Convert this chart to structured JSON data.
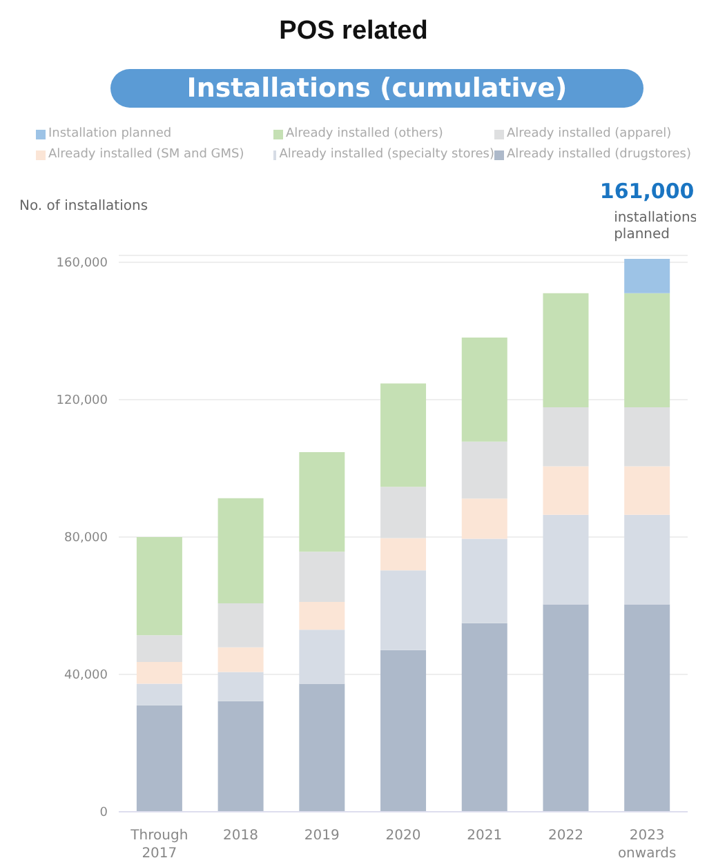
{
  "chart_data": {
    "type": "bar",
    "title": "POS related",
    "subtitle": "Installations (cumulative)",
    "ylabel": "No. of installations",
    "categories": [
      "Through 2017",
      "2018",
      "2019",
      "2020",
      "2021",
      "2022",
      "2023 onwards"
    ],
    "series": [
      {
        "name": "Already installed (drugstores)",
        "color": "#adb9ca",
        "values": [
          31000,
          32200,
          37300,
          47100,
          54900,
          60400,
          60400
        ]
      },
      {
        "name": "Already installed (specialty stores)",
        "color": "#d6dce5",
        "values": [
          6300,
          8500,
          15700,
          23200,
          24600,
          26100,
          26100
        ]
      },
      {
        "name": "Already installed (SM and GMS)",
        "color": "#fbe5d6",
        "values": [
          6300,
          7200,
          8100,
          9400,
          11700,
          14100,
          14100
        ]
      },
      {
        "name": "Already installed (apparel)",
        "color": "#dedfe0",
        "values": [
          7800,
          12800,
          14600,
          14900,
          16600,
          17200,
          17200
        ]
      },
      {
        "name": "Already installed (others)",
        "color": "#c5e0b4",
        "values": [
          28600,
          30600,
          29000,
          30100,
          30300,
          33200,
          33200
        ]
      },
      {
        "name": "Installation planned",
        "color": "#9dc3e6",
        "values": [
          null,
          null,
          null,
          null,
          null,
          null,
          10000
        ]
      }
    ],
    "stacked": true,
    "ylim": [
      0,
      162000
    ],
    "yticks": [
      0,
      {
        "value": 40000,
        "label": "40,000"
      },
      {
        "value": 80000,
        "label": "80,000"
      },
      {
        "value": 120000,
        "label": "120,000"
      },
      {
        "value": 160000,
        "label": "160,000"
      }
    ],
    "grid": "y",
    "legend": "top",
    "annotations": [
      {
        "text": "161,000",
        "x": "2023 onwards",
        "y": 161000
      },
      {
        "text": "installations planned",
        "x": "2023 onwards",
        "y": 161000
      }
    ]
  }
}
